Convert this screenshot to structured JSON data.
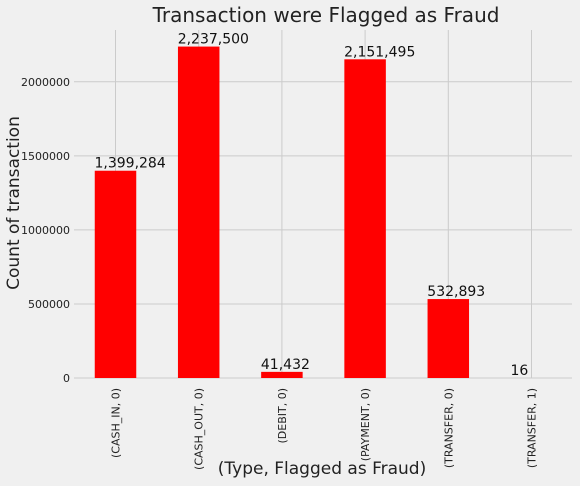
{
  "chart_data": {
    "type": "bar",
    "title": "Transaction were Flagged as Fraud",
    "xlabel": "(Type, Flagged as Fraud)",
    "ylabel": "Count of transaction",
    "categories": [
      "(CASH_IN, 0)",
      "(CASH_OUT, 0)",
      "(DEBIT, 0)",
      "(PAYMENT, 0)",
      "(TRANSFER, 0)",
      "(TRANSFER, 1)"
    ],
    "values": [
      1399284,
      2237500,
      41432,
      2151495,
      532893,
      16
    ],
    "data_labels": [
      "1,399,284",
      "2,237,500",
      "41,432",
      "2,151,495",
      "532,893",
      "16"
    ],
    "yticks": [
      0,
      500000,
      1000000,
      1500000,
      2000000
    ],
    "ytick_labels": [
      "0",
      "500000",
      "1000000",
      "1500000",
      "2000000"
    ],
    "ylim": [
      0,
      2349375
    ],
    "grid": true,
    "bar_color": "#ff0000",
    "background_color": "#f0f0f0",
    "grid_color": "#cbcbcb"
  }
}
